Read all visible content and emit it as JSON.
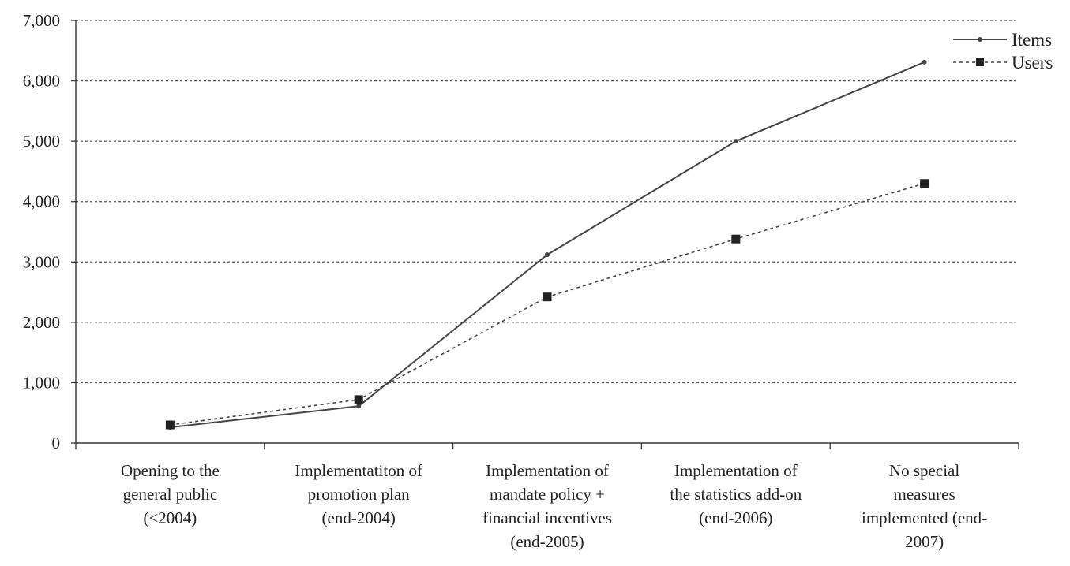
{
  "chart_data": {
    "type": "line",
    "title": "",
    "xlabel": "",
    "ylabel": "",
    "categories": [
      [
        "Opening to the",
        "general public",
        "(<2004)"
      ],
      [
        "Implementatiton of",
        "promotion plan",
        "(end-2004)"
      ],
      [
        "Implementation of",
        "mandate policy +",
        "financial incentives",
        "(end-2005)"
      ],
      [
        "Implementation of",
        "the statistics add-on",
        "(end-2006)"
      ],
      [
        "No special",
        "measures",
        "implemented (end-",
        "2007)"
      ]
    ],
    "ylim": [
      0,
      7000
    ],
    "yticks": [
      0,
      1000,
      2000,
      3000,
      4000,
      5000,
      6000,
      7000
    ],
    "ytick_labels": [
      "0",
      "1,000",
      "2,000",
      "3,000",
      "4,000",
      "5,000",
      "6,000",
      "7,000"
    ],
    "grid": true,
    "legend_position": "top-right",
    "series": [
      {
        "name": "Items",
        "values": [
          260,
          610,
          3120,
          5000,
          6310
        ],
        "line_style": "solid",
        "marker": "small-dot",
        "color": "#444444"
      },
      {
        "name": "Users",
        "values": [
          300,
          720,
          2420,
          3380,
          4300
        ],
        "line_style": "dotted",
        "marker": "square",
        "color": "#444444"
      }
    ]
  }
}
